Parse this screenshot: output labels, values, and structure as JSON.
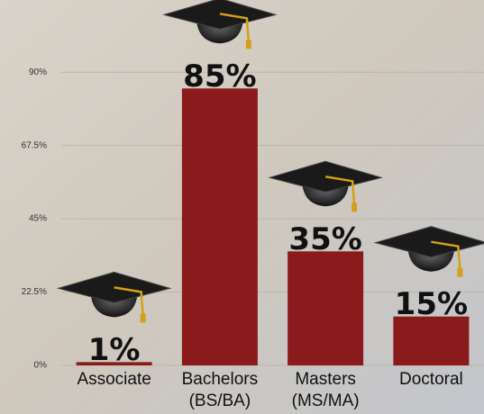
{
  "chart_data": {
    "type": "bar",
    "categories": [
      [
        "Associate"
      ],
      [
        "Bachelors",
        "(BS/BA)"
      ],
      [
        "Masters",
        "(MS/MA)"
      ],
      [
        "Doctoral"
      ]
    ],
    "values": [
      1,
      85,
      35,
      15
    ],
    "value_labels": [
      "1%",
      "85%",
      "35%",
      "15%"
    ],
    "color": "#8a1a1c",
    "ylim": [
      0,
      100
    ],
    "yticks": [
      {
        "value": 0,
        "label": "0%"
      },
      {
        "value": 22.5,
        "label": "22.5%"
      },
      {
        "value": 45,
        "label": "45%"
      },
      {
        "value": 67.5,
        "label": "67.5%"
      },
      {
        "value": 90,
        "label": "90%"
      }
    ],
    "grid": true
  }
}
